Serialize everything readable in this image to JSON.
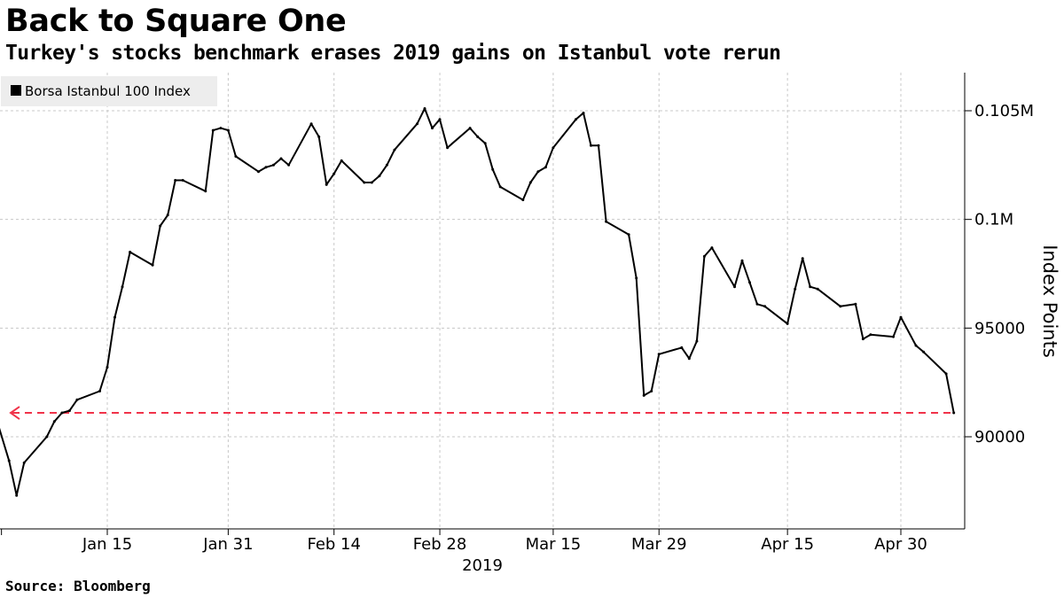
{
  "title": "Back to Square One",
  "subtitle": "Turkey's stocks benchmark erases 2019 gains on Istanbul vote rerun",
  "source": "Source: Bloomberg",
  "chart_data": {
    "type": "line",
    "legend": [
      "Borsa Istanbul 100 Index"
    ],
    "legend_position": "top-left",
    "ylabel": "Index Points",
    "y_axis_side": "right",
    "ylim": [
      85500,
      107000
    ],
    "yticks": [
      {
        "value": 90000,
        "label": "90000"
      },
      {
        "value": 95000,
        "label": "95000"
      },
      {
        "value": 100000,
        "label": "0.1M"
      },
      {
        "value": 105000,
        "label": "0.105M"
      }
    ],
    "xticks": [
      "Jan 15",
      "Jan 31",
      "Feb 14",
      "Feb 28",
      "Mar 15",
      "Mar 29",
      "Apr 15",
      "Apr 30"
    ],
    "x_year_label": "2019",
    "grid": true,
    "reference_line": {
      "value": 91100,
      "style": "dashed",
      "color": "#f0334a",
      "arrow": "left"
    },
    "series": [
      {
        "name": "Borsa Istanbul 100 Index",
        "color": "#000000",
        "x": [
          "2018-12-31",
          "2019-01-02",
          "2019-01-03",
          "2019-01-04",
          "2019-01-07",
          "2019-01-08",
          "2019-01-09",
          "2019-01-10",
          "2019-01-11",
          "2019-01-14",
          "2019-01-15",
          "2019-01-16",
          "2019-01-17",
          "2019-01-18",
          "2019-01-21",
          "2019-01-22",
          "2019-01-23",
          "2019-01-24",
          "2019-01-25",
          "2019-01-28",
          "2019-01-29",
          "2019-01-30",
          "2019-01-31",
          "2019-02-01",
          "2019-02-04",
          "2019-02-05",
          "2019-02-06",
          "2019-02-07",
          "2019-02-08",
          "2019-02-11",
          "2019-02-12",
          "2019-02-13",
          "2019-02-14",
          "2019-02-15",
          "2019-02-18",
          "2019-02-19",
          "2019-02-20",
          "2019-02-21",
          "2019-02-22",
          "2019-02-25",
          "2019-02-26",
          "2019-02-27",
          "2019-02-28",
          "2019-03-01",
          "2019-03-04",
          "2019-03-05",
          "2019-03-06",
          "2019-03-07",
          "2019-03-08",
          "2019-03-11",
          "2019-03-12",
          "2019-03-13",
          "2019-03-14",
          "2019-03-15",
          "2019-03-18",
          "2019-03-19",
          "2019-03-20",
          "2019-03-21",
          "2019-03-22",
          "2019-03-25",
          "2019-03-26",
          "2019-03-27",
          "2019-03-28",
          "2019-03-29",
          "2019-04-01",
          "2019-04-02",
          "2019-04-03",
          "2019-04-04",
          "2019-04-05",
          "2019-04-08",
          "2019-04-09",
          "2019-04-10",
          "2019-04-11",
          "2019-04-12",
          "2019-04-15",
          "2019-04-16",
          "2019-04-17",
          "2019-04-18",
          "2019-04-19",
          "2019-04-22",
          "2019-04-24",
          "2019-04-25",
          "2019-04-26",
          "2019-04-29",
          "2019-04-30",
          "2019-05-02",
          "2019-05-03",
          "2019-05-06",
          "2019-05-07"
        ],
        "values": [
          91200,
          88900,
          87300,
          88800,
          90000,
          90700,
          91100,
          91200,
          91700,
          92100,
          93200,
          95500,
          96900,
          98500,
          97900,
          99700,
          100200,
          101800,
          101800,
          101300,
          104100,
          104200,
          104100,
          102900,
          102200,
          102400,
          102500,
          102800,
          102500,
          104400,
          103800,
          101600,
          102100,
          102700,
          101700,
          101700,
          102000,
          102500,
          103200,
          104400,
          105100,
          104200,
          104600,
          103300,
          104200,
          103800,
          103500,
          102300,
          101500,
          100900,
          101700,
          102200,
          102400,
          103300,
          104600,
          104900,
          103400,
          103400,
          99900,
          99300,
          97300,
          91900,
          92100,
          93800,
          94100,
          93600,
          94400,
          98300,
          98700,
          96900,
          98100,
          97100,
          96100,
          96000,
          95200,
          96800,
          98200,
          96900,
          96800,
          96000,
          96100,
          94500,
          94700,
          94600,
          95500,
          94200,
          93900,
          92900,
          91100
        ]
      }
    ]
  }
}
